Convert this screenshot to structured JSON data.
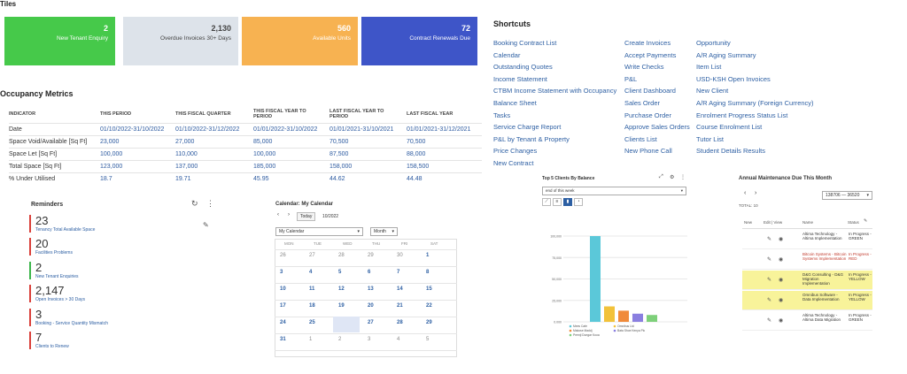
{
  "tiles_title": "Tiles",
  "tiles": [
    {
      "value": "2",
      "label": "New Tenant Enquiry",
      "color": "#46c94a"
    },
    {
      "value": "2,130",
      "label": "Overdue Invoices 30+ Days",
      "color": "#dde3ea"
    },
    {
      "value": "560",
      "label": "Available Units",
      "color": "#f7b251"
    },
    {
      "value": "72",
      "label": "Contract Renewals Due",
      "color": "#3e55c8"
    }
  ],
  "occupancy": {
    "title": "Occupancy Metrics",
    "headers": [
      "INDICATOR",
      "THIS PERIOD",
      "THIS FISCAL QUARTER",
      "THIS FISCAL YEAR TO PERIOD",
      "LAST FISCAL YEAR TO PERIOD",
      "LAST FISCAL YEAR"
    ],
    "rows": [
      [
        "Date",
        "01/10/2022-31/10/2022",
        "01/10/2022-31/12/2022",
        "01/01/2022-31/10/2022",
        "01/01/2021-31/10/2021",
        "01/01/2021-31/12/2021"
      ],
      [
        "Space Void/Available [Sq Ft]",
        "23,000",
        "27,000",
        "85,000",
        "70,500",
        "70,500"
      ],
      [
        "Space Let [Sq Ft]",
        "100,000",
        "110,000",
        "100,000",
        "87,500",
        "88,000"
      ],
      [
        "Total Space [Sq Ft]",
        "123,000",
        "137,000",
        "185,000",
        "158,000",
        "158,500"
      ],
      [
        "% Under Utilised",
        "18.7",
        "19.71",
        "45.95",
        "44.62",
        "44.48"
      ]
    ]
  },
  "shortcuts": {
    "title": "Shortcuts",
    "col1": [
      "Booking Contract List",
      "Calendar",
      "Outstanding Quotes",
      "Income Statement",
      "CTBM Income Statement with Occupancy",
      "Balance Sheet",
      "Tasks",
      "Service Charge Report",
      "P&L by Tenant & Property",
      "Price Changes",
      "New Contract"
    ],
    "col2": [
      "Create Invoices",
      "Accept Payments",
      "Write Checks",
      "P&L",
      "Client Dashboard",
      "Sales Order",
      "Purchase Order",
      "Approve Sales Orders",
      "Clients List",
      "New Phone Call"
    ],
    "col3": [
      "Opportunity",
      "A/R Aging Summary",
      "Item List",
      "USD-KSH Open Invoices",
      "New Client",
      "A/R Aging Summary (Foreign Currency)",
      "Enrolment Progress Status List",
      "Course Enrolment List",
      "Tutor List",
      "Student Details Results"
    ]
  },
  "reminders": {
    "title": "Reminders",
    "items": [
      {
        "value": "23",
        "label": "Tenancy Total Available Space",
        "color": "#d9403a"
      },
      {
        "value": "20",
        "label": "Facilities Problems",
        "color": "#d9403a"
      },
      {
        "value": "2",
        "label": "New Tenant Enquiries",
        "color": "#3cb54a"
      },
      {
        "value": "2,147",
        "label": "Open Invoices > 30 Days",
        "color": "#d9403a"
      },
      {
        "value": "3",
        "label": "Booking - Service Quantity Mismatch",
        "color": "#d9403a"
      },
      {
        "value": "7",
        "label": "Clients to Renew",
        "color": "#d9403a"
      }
    ]
  },
  "calendar": {
    "title": "Calendar: My Calendar",
    "today_label": "Today",
    "month_label": "10/2022",
    "calendar_select": "My Calendar",
    "view_select": "Month",
    "days": [
      "MON",
      "TUE",
      "WED",
      "THU",
      "FRI",
      "SAT"
    ],
    "weeks": [
      [
        "26",
        "27",
        "28",
        "29",
        "30",
        "1"
      ],
      [
        "3",
        "4",
        "5",
        "6",
        "7",
        "8"
      ],
      [
        "10",
        "11",
        "12",
        "13",
        "14",
        "15"
      ],
      [
        "17",
        "18",
        "19",
        "20",
        "21",
        "22"
      ],
      [
        "24",
        "25",
        "26",
        "27",
        "28",
        "29"
      ],
      [
        "31",
        "1",
        "2",
        "3",
        "4",
        "5"
      ]
    ]
  },
  "top_clients": {
    "title": "Top 5 Clients By Balance",
    "period_select": "end of this week",
    "y_ticks": [
      "100,000",
      "75,000",
      "50,000",
      "25,000",
      "0.000"
    ],
    "legend": [
      "Mees Cafe",
      "Omnibus Ltd",
      "Makose Maddj",
      "Bata Shoe Kenya Plc",
      "Premji Dungar Kooa"
    ]
  },
  "chart_data": {
    "type": "bar",
    "title": "Top 5 Clients By Balance",
    "categories": [
      "Mees Cafe",
      "Omnibus Ltd",
      "Makose Maddj",
      "Bata Shoe Kenya Plc",
      "Premji Dungar Kooa"
    ],
    "values": [
      100000,
      18000,
      13000,
      9500,
      8000
    ],
    "colors": [
      "#5bc8d9",
      "#f2c23a",
      "#f08a3a",
      "#8a7fe0",
      "#7ed07a"
    ],
    "ylim": [
      0,
      100000
    ]
  },
  "annual_maintenance": {
    "title": "Annual Maintenance Due This Month",
    "range_select": "138706 — 36520",
    "total": "TOTAL: 10",
    "headers": [
      "New",
      "Edit | View",
      "Name",
      "Status"
    ],
    "rows": [
      {
        "name": "Altima Technology - Altima Implementation",
        "status": "In Progress - GREEN",
        "color": "#333",
        "bg": "#ffffff"
      },
      {
        "name": "Bitcoin Systems - Bitcoin Systems Implementation",
        "status": "In Progress - RED",
        "color": "#c0392b",
        "bg": "#ffffff"
      },
      {
        "name": "D&G Consulting - D&G Migration Implementation",
        "status": "In Progress - YELLOW",
        "color": "#333",
        "bg": "#f8f39a"
      },
      {
        "name": "Omnibus Software - Data Implementation",
        "status": "In Progress - YELLOW",
        "color": "#333",
        "bg": "#f8f39a"
      },
      {
        "name": "Altima Technology - Altima Data Migration",
        "status": "In Progress - GREEN",
        "color": "#333",
        "bg": "#ffffff"
      }
    ]
  }
}
